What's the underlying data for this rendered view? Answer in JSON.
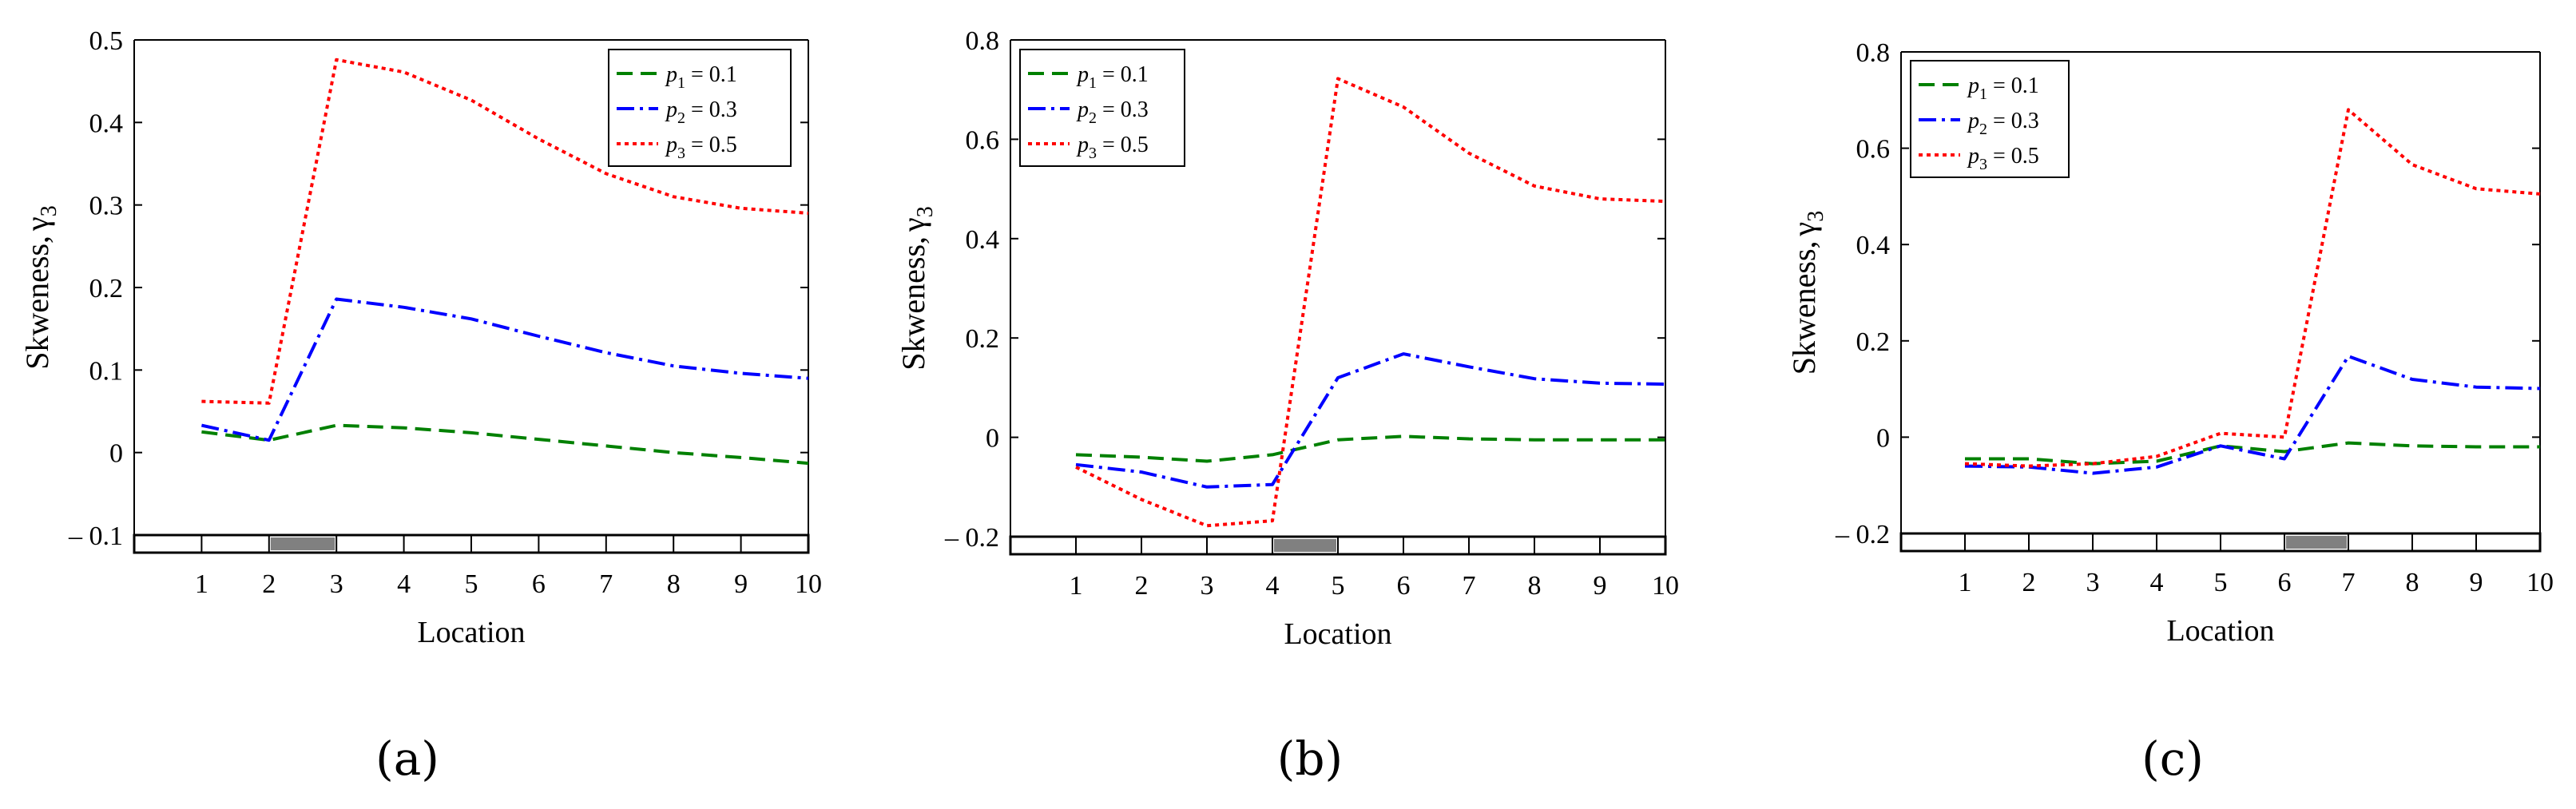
{
  "colors": {
    "p1": "#008000",
    "p2": "#0000ff",
    "p3": "#ff0000",
    "marker": "#808080",
    "axis": "#000000"
  },
  "chart_data": [
    {
      "type": "line",
      "panel_label": "(a)",
      "xlabel": "Location",
      "ylabel": "Skweness,",
      "ylabel_symbol": "γ",
      "ylabel_sub": "3",
      "x": [
        1,
        2,
        3,
        4,
        5,
        6,
        7,
        8,
        9,
        10
      ],
      "xlim": [
        0,
        10
      ],
      "ylim": [
        -0.1,
        0.5
      ],
      "yticks": [
        -0.1,
        0,
        0.1,
        0.2,
        0.3,
        0.4,
        0.5
      ],
      "ytick_labels": [
        "– 0.1",
        "0",
        "0.1",
        "0.2",
        "0.3",
        "0.4",
        "0.5"
      ],
      "xtick_labels": [
        "1",
        "2",
        "3",
        "4",
        "5",
        "6",
        "7",
        "8",
        "9",
        "10"
      ],
      "marked_interval": [
        2,
        3
      ],
      "legend": "top-right",
      "series": [
        {
          "name_sym": "p",
          "name_sub": "1",
          "name_val": " = 0.1",
          "values": [
            0.025,
            0.015,
            0.033,
            0.03,
            0.024,
            0.016,
            0.008,
            0.0,
            -0.006,
            -0.013
          ]
        },
        {
          "name_sym": "p",
          "name_sub": "2",
          "name_val": " = 0.3",
          "values": [
            0.033,
            0.015,
            0.186,
            0.176,
            0.162,
            0.141,
            0.121,
            0.105,
            0.096,
            0.09
          ]
        },
        {
          "name_sym": "p",
          "name_sub": "3",
          "name_val": " = 0.5",
          "values": [
            0.062,
            0.06,
            0.476,
            0.461,
            0.427,
            0.38,
            0.338,
            0.31,
            0.296,
            0.29
          ]
        }
      ]
    },
    {
      "type": "line",
      "panel_label": "(b)",
      "xlabel": "Location",
      "ylabel": "Skweness,",
      "ylabel_symbol": "γ",
      "ylabel_sub": "3",
      "x": [
        1,
        2,
        3,
        4,
        5,
        6,
        7,
        8,
        9,
        10
      ],
      "xlim": [
        0,
        10
      ],
      "ylim": [
        -0.2,
        0.8
      ],
      "yticks": [
        -0.2,
        0,
        0.2,
        0.4,
        0.6,
        0.8
      ],
      "ytick_labels": [
        "– 0.2",
        "0",
        "0.2",
        "0.4",
        "0.6",
        "0.8"
      ],
      "xtick_labels": [
        "1",
        "2",
        "3",
        "4",
        "5",
        "6",
        "7",
        "8",
        "9",
        "10"
      ],
      "marked_interval": [
        4,
        5
      ],
      "legend": "top-left",
      "series": [
        {
          "name_sym": "p",
          "name_sub": "1",
          "name_val": " = 0.1",
          "values": [
            -0.035,
            -0.04,
            -0.048,
            -0.035,
            -0.005,
            0.002,
            -0.003,
            -0.005,
            -0.005,
            -0.005
          ]
        },
        {
          "name_sym": "p",
          "name_sub": "2",
          "name_val": " = 0.3",
          "values": [
            -0.055,
            -0.07,
            -0.1,
            -0.095,
            0.12,
            0.168,
            0.142,
            0.118,
            0.109,
            0.107
          ]
        },
        {
          "name_sym": "p",
          "name_sub": "3",
          "name_val": " = 0.5",
          "values": [
            -0.06,
            -0.125,
            -0.178,
            -0.168,
            0.722,
            0.665,
            0.572,
            0.506,
            0.48,
            0.475
          ]
        }
      ]
    },
    {
      "type": "line",
      "panel_label": "(c)",
      "xlabel": "Location",
      "ylabel": "Skweness,",
      "ylabel_symbol": "γ",
      "ylabel_sub": "3",
      "x": [
        1,
        2,
        3,
        4,
        5,
        6,
        7,
        8,
        9,
        10
      ],
      "xlim": [
        0,
        10
      ],
      "ylim": [
        -0.2,
        0.8
      ],
      "yticks": [
        -0.2,
        0,
        0.2,
        0.4,
        0.6,
        0.8
      ],
      "ytick_labels": [
        "– 0.2",
        "0",
        "0.2",
        "0.4",
        "0.6",
        "0.8"
      ],
      "xtick_labels": [
        "1",
        "2",
        "3",
        "4",
        "5",
        "6",
        "7",
        "8",
        "9",
        "10"
      ],
      "marked_interval": [
        6,
        7
      ],
      "legend": "top-left",
      "series": [
        {
          "name_sym": "p",
          "name_sub": "1",
          "name_val": " = 0.1",
          "values": [
            -0.045,
            -0.045,
            -0.055,
            -0.05,
            -0.018,
            -0.03,
            -0.012,
            -0.018,
            -0.02,
            -0.02
          ]
        },
        {
          "name_sym": "p",
          "name_sub": "2",
          "name_val": " = 0.3",
          "values": [
            -0.06,
            -0.062,
            -0.075,
            -0.062,
            -0.018,
            -0.045,
            0.168,
            0.12,
            0.104,
            0.101
          ]
        },
        {
          "name_sym": "p",
          "name_sub": "3",
          "name_val": " = 0.5",
          "values": [
            -0.055,
            -0.06,
            -0.055,
            -0.04,
            0.008,
            0.0,
            0.68,
            0.566,
            0.516,
            0.505
          ]
        }
      ]
    }
  ]
}
